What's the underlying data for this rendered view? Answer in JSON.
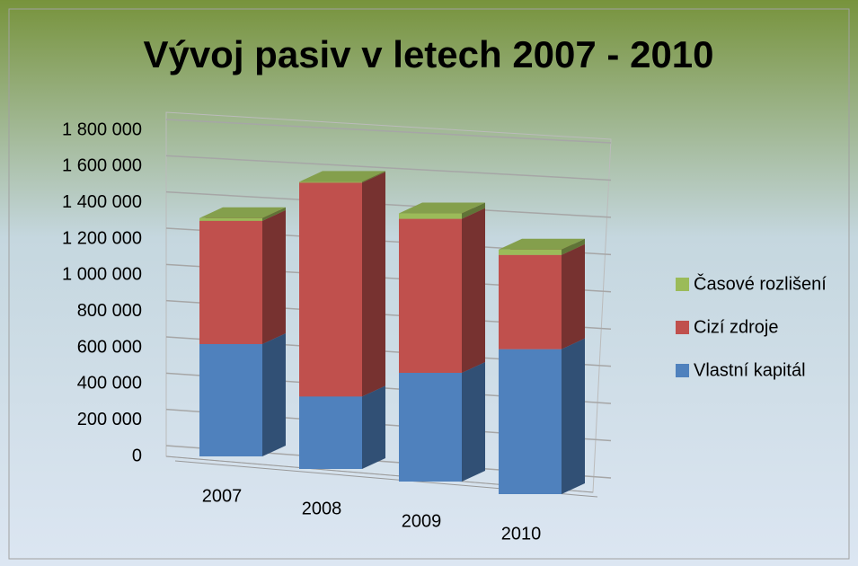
{
  "chart_data": {
    "type": "bar3d_stacked",
    "title": "Vývoj pasiv v letech 2007 - 2010",
    "categories": [
      "2007",
      "2008",
      "2009",
      "2010"
    ],
    "series": [
      {
        "name": "Vlastní kapitál",
        "color": "#4f81bd",
        "values": [
          620000,
          400000,
          600000,
          800000
        ]
      },
      {
        "name": "Cizí zdroje",
        "color": "#c0504d",
        "values": [
          680000,
          1180000,
          850000,
          520000
        ]
      },
      {
        "name": "Časové rozlišení",
        "color": "#9bbb59",
        "values": [
          15000,
          5000,
          30000,
          30000
        ]
      }
    ],
    "ylim": [
      0,
      1800000
    ],
    "yticks": [
      0,
      {
        "value": 200000,
        "label": "200 000"
      },
      {
        "value": 400000,
        "label": "400 000"
      },
      {
        "value": 600000,
        "label": "600 000"
      },
      {
        "value": 800000,
        "label": "800 000"
      },
      {
        "value": 1000000,
        "label": "1 000 000"
      },
      {
        "value": 1200000,
        "label": "1 200 000"
      },
      {
        "value": 1400000,
        "label": "1 400 000"
      },
      {
        "value": 1600000,
        "label": "1 600 000"
      },
      {
        "value": 1800000,
        "label": "1 800 000"
      }
    ],
    "grid": true,
    "legend": "right"
  }
}
